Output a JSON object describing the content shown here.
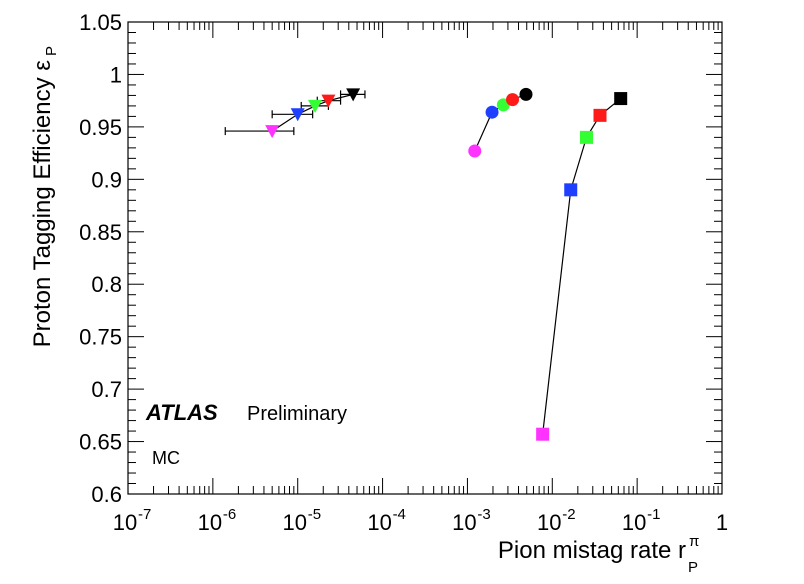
{
  "chart_data": {
    "type": "scatter",
    "title": "",
    "xlabel": "Pion mistag rate r",
    "xlabel_sup": "π",
    "xlabel_sub": "P",
    "ylabel": "Proton Tagging Efficiency ε",
    "ylabel_sub": "P",
    "x_scale": "log",
    "xlim": [
      1e-07,
      1
    ],
    "ylim": [
      0.6,
      1.05
    ],
    "grid": false,
    "x_ticks": [
      {
        "value": 1e-07,
        "base": "10",
        "exp": "-7"
      },
      {
        "value": 1e-06,
        "base": "10",
        "exp": "-6"
      },
      {
        "value": 1e-05,
        "base": "10",
        "exp": "-5"
      },
      {
        "value": 0.0001,
        "base": "10",
        "exp": "-4"
      },
      {
        "value": 0.001,
        "base": "10",
        "exp": "-3"
      },
      {
        "value": 0.01,
        "base": "10",
        "exp": "-2"
      },
      {
        "value": 0.1,
        "base": "10",
        "exp": "-1"
      },
      {
        "value": 1,
        "base": "1",
        "exp": ""
      }
    ],
    "y_ticks": [
      "0.6",
      "0.65",
      "0.7",
      "0.75",
      "0.8",
      "0.85",
      "0.9",
      "0.95",
      "1",
      "1.05"
    ],
    "annotations": {
      "atlas": "ATLAS",
      "preliminary": "Preliminary",
      "mc": "MC"
    },
    "series": [
      {
        "marker": "triangle-down",
        "points": [
          {
            "x": 5e-06,
            "y": 0.946,
            "color": "#ff33ff",
            "xerr_low": 1.4e-06,
            "xerr_high": 9e-06
          },
          {
            "x": 1e-05,
            "y": 0.962,
            "color": "#1f3fff",
            "xerr_low": 5e-06,
            "xerr_high": 1.5e-05
          },
          {
            "x": 1.6e-05,
            "y": 0.97,
            "color": "#33ff33",
            "xerr_low": 1.1e-05,
            "xerr_high": 2.3e-05
          },
          {
            "x": 2.3e-05,
            "y": 0.975,
            "color": "#ff1a1a",
            "xerr_low": 1.7e-05,
            "xerr_high": 3.2e-05
          },
          {
            "x": 4.5e-05,
            "y": 0.981,
            "color": "#000000",
            "xerr_low": 3.2e-05,
            "xerr_high": 6.2e-05
          }
        ]
      },
      {
        "marker": "circle",
        "points": [
          {
            "x": 0.00122,
            "y": 0.927,
            "color": "#ff33ff"
          },
          {
            "x": 0.00195,
            "y": 0.964,
            "color": "#1f3fff"
          },
          {
            "x": 0.00265,
            "y": 0.971,
            "color": "#33ff33"
          },
          {
            "x": 0.0034,
            "y": 0.976,
            "color": "#ff1a1a"
          },
          {
            "x": 0.0049,
            "y": 0.981,
            "color": "#000000"
          }
        ]
      },
      {
        "marker": "square",
        "points": [
          {
            "x": 0.0077,
            "y": 0.657,
            "color": "#ff33ff"
          },
          {
            "x": 0.0165,
            "y": 0.89,
            "color": "#1f3fff"
          },
          {
            "x": 0.0253,
            "y": 0.94,
            "color": "#33ff33"
          },
          {
            "x": 0.0365,
            "y": 0.961,
            "color": "#ff1a1a"
          },
          {
            "x": 0.064,
            "y": 0.977,
            "color": "#000000"
          }
        ]
      }
    ]
  }
}
